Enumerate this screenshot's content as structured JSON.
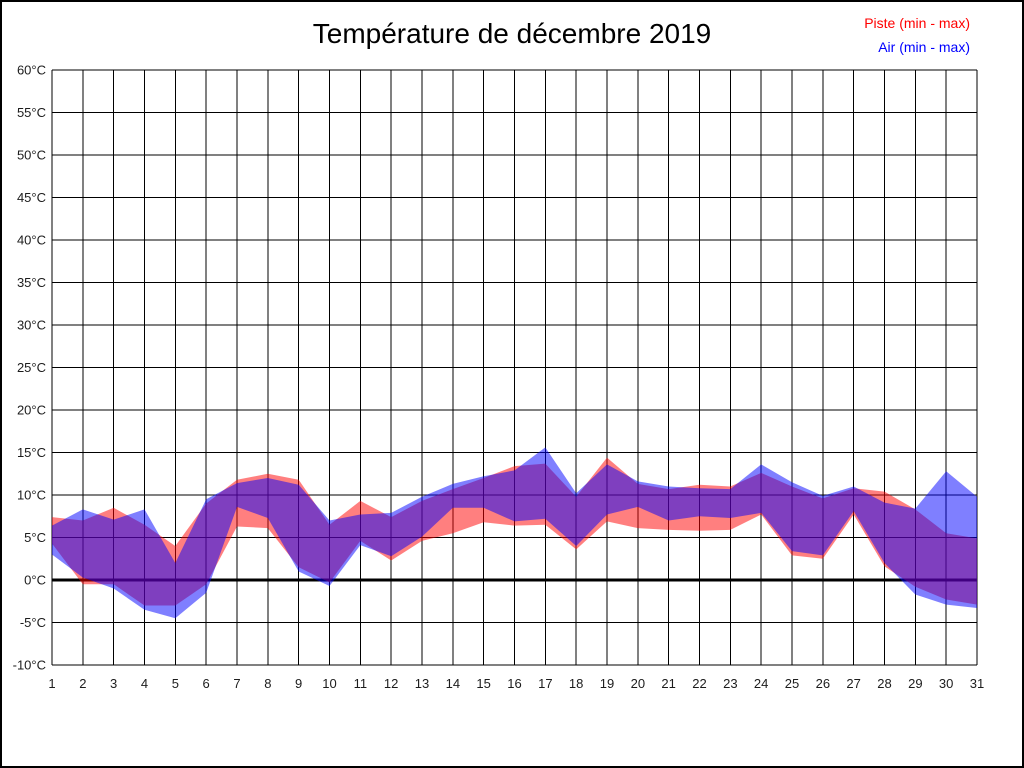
{
  "chart_data": {
    "type": "area",
    "title": "Température de décembre 2019",
    "x": [
      1,
      2,
      3,
      4,
      5,
      6,
      7,
      8,
      9,
      10,
      11,
      12,
      13,
      14,
      15,
      16,
      17,
      18,
      19,
      20,
      21,
      22,
      23,
      24,
      25,
      26,
      27,
      28,
      29,
      30,
      31
    ],
    "xtick_labels": [
      "1",
      "2",
      "3",
      "4",
      "5",
      "6",
      "7",
      "8",
      "9",
      "10",
      "11",
      "12",
      "13",
      "14",
      "15",
      "16",
      "17",
      "18",
      "19",
      "20",
      "21",
      "22",
      "23",
      "24",
      "25",
      "26",
      "27",
      "28",
      "29",
      "30",
      "31"
    ],
    "ylim": [
      -10,
      60
    ],
    "ytick_step": 5,
    "ytick_labels": [
      "-10°C",
      "-5°C",
      "0°C",
      "5°C",
      "10°C",
      "15°C",
      "20°C",
      "25°C",
      "30°C",
      "35°C",
      "40°C",
      "45°C",
      "50°C",
      "55°C",
      "60°C"
    ],
    "grid": true,
    "zero_line": true,
    "legend_position": "top-right",
    "series": [
      {
        "name": "Piste (min - max)",
        "color": "#ff0000",
        "fill": "rgba(255,0,0,0.5)",
        "min": [
          4.3,
          -0.5,
          -0.5,
          -3.0,
          -3.0,
          -0.5,
          6.3,
          6.1,
          1.5,
          -0.3,
          4.6,
          2.3,
          4.6,
          5.5,
          6.8,
          6.4,
          6.5,
          3.6,
          6.9,
          6.1,
          5.9,
          5.8,
          5.9,
          7.7,
          2.9,
          2.5,
          7.7,
          1.6,
          -0.8,
          -2.3,
          -2.9
        ],
        "max": [
          7.4,
          7.0,
          8.5,
          6.5,
          4.0,
          9.0,
          11.8,
          12.5,
          11.8,
          6.5,
          9.3,
          7.4,
          9.3,
          10.7,
          12.0,
          13.4,
          13.7,
          9.8,
          14.4,
          11.3,
          10.7,
          11.2,
          11.0,
          12.6,
          11.0,
          9.6,
          10.8,
          10.4,
          8.3,
          5.5,
          4.9
        ]
      },
      {
        "name": "Air (min - max)",
        "color": "#0000ff",
        "fill": "rgba(0,0,255,0.5)",
        "min": [
          3.0,
          0.3,
          -1.0,
          -3.5,
          -4.5,
          -1.5,
          8.6,
          7.3,
          1.0,
          -0.7,
          4.1,
          2.8,
          5.1,
          8.5,
          8.5,
          6.9,
          7.2,
          4.0,
          7.7,
          8.6,
          7.0,
          7.5,
          7.3,
          7.9,
          3.4,
          2.9,
          8.1,
          2.0,
          -1.7,
          -2.9,
          -3.3
        ],
        "max": [
          6.4,
          8.3,
          7.1,
          8.3,
          2.0,
          9.5,
          11.4,
          12.0,
          11.2,
          7.0,
          7.7,
          7.9,
          9.8,
          11.3,
          12.2,
          12.9,
          15.6,
          10.2,
          13.6,
          11.6,
          11.0,
          10.8,
          10.7,
          13.6,
          11.5,
          9.9,
          11.0,
          9.1,
          8.4,
          12.8,
          9.8
        ]
      }
    ]
  }
}
